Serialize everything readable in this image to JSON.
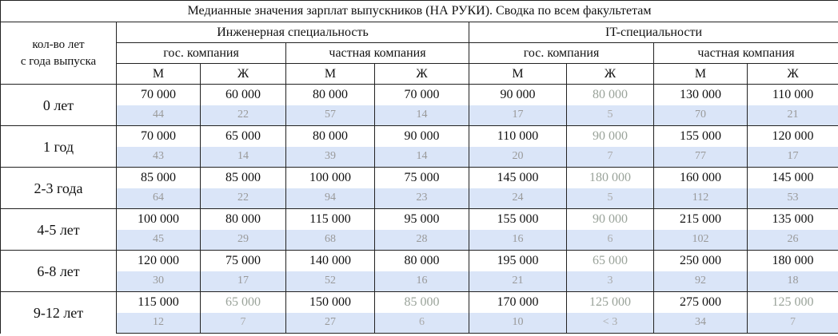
{
  "title": "Медианные значения зарплат выпускников (НА РУКИ). Сводка по всем факультетам",
  "row_header": [
    "кол-во лет",
    "с года выпуска"
  ],
  "groups": [
    {
      "name": "Инженерная специальность",
      "companies": [
        {
          "name": "гос. компания",
          "genders": [
            "М",
            "Ж"
          ]
        },
        {
          "name": "частная компания",
          "genders": [
            "М",
            "Ж"
          ]
        }
      ]
    },
    {
      "name": "IT-специальности",
      "companies": [
        {
          "name": "гос. компания",
          "genders": [
            "М",
            "Ж"
          ]
        },
        {
          "name": "частная компания",
          "genders": [
            "М",
            "Ж"
          ]
        }
      ]
    }
  ],
  "rows": [
    {
      "label": "0 лет",
      "salaries": [
        "70 000",
        "60 000",
        "80 000",
        "70 000",
        "90 000",
        "80 000",
        "130 000",
        "110 000"
      ],
      "counts": [
        "44",
        "22",
        "57",
        "14",
        "17",
        "5",
        "70",
        "21"
      ]
    },
    {
      "label": "1 год",
      "salaries": [
        "70 000",
        "65 000",
        "80 000",
        "90 000",
        "110 000",
        "90 000",
        "155 000",
        "120 000"
      ],
      "counts": [
        "43",
        "14",
        "39",
        "14",
        "20",
        "7",
        "77",
        "17"
      ]
    },
    {
      "label": "2-3 года",
      "salaries": [
        "85 000",
        "85 000",
        "100 000",
        "75 000",
        "145 000",
        "180 000",
        "160 000",
        "145 000"
      ],
      "counts": [
        "64",
        "22",
        "94",
        "23",
        "24",
        "5",
        "112",
        "53"
      ]
    },
    {
      "label": "4-5 лет",
      "salaries": [
        "100 000",
        "80 000",
        "115 000",
        "95 000",
        "155 000",
        "90 000",
        "215 000",
        "135 000"
      ],
      "counts": [
        "45",
        "29",
        "68",
        "28",
        "16",
        "6",
        "102",
        "26"
      ]
    },
    {
      "label": "6-8 лет",
      "salaries": [
        "120 000",
        "75 000",
        "140 000",
        "80 000",
        "195 000",
        "65 000",
        "250 000",
        "180 000"
      ],
      "counts": [
        "30",
        "17",
        "52",
        "16",
        "21",
        "3",
        "92",
        "18"
      ]
    },
    {
      "label": "9-12 лет",
      "salaries": [
        "115 000",
        "65 000",
        "150 000",
        "85 000",
        "170 000",
        "125 000",
        "275 000",
        "125 000"
      ],
      "counts": [
        "12",
        "7",
        "27",
        "6",
        "10",
        "< 3",
        "34",
        "7"
      ]
    }
  ]
}
